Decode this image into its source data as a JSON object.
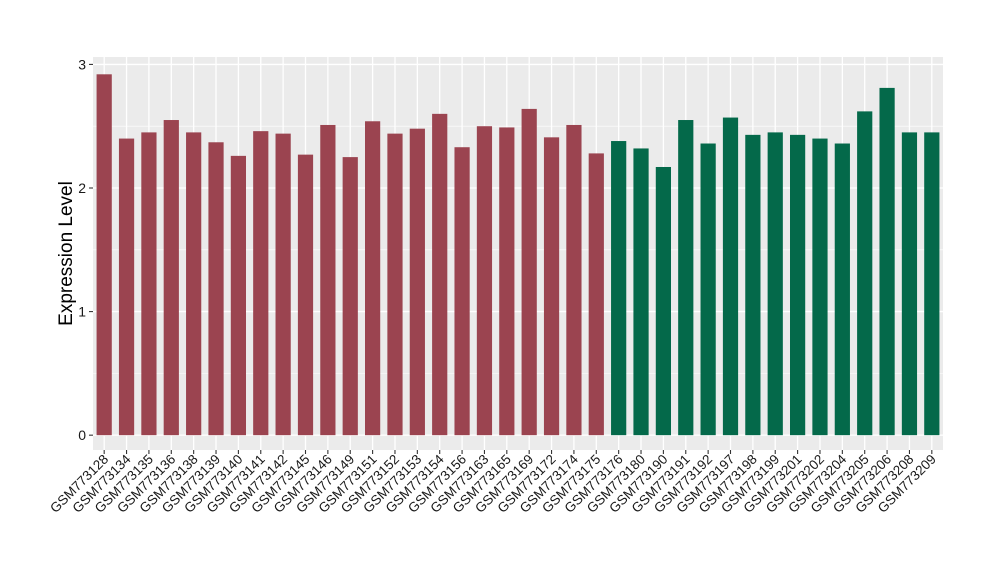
{
  "chart_data": {
    "type": "bar",
    "ylabel": "Expression Level",
    "xlabel": "",
    "ylim": [
      -0.12,
      3.06
    ],
    "yticks": [
      0,
      1,
      2,
      3
    ],
    "grid": true,
    "legend": "none",
    "colors": {
      "group1": "#9b4450",
      "group2": "#04694a",
      "panel": "#ebebeb",
      "grid": "#ffffff"
    },
    "categories": [
      "GSM773128",
      "GSM773134",
      "GSM773135",
      "GSM773136",
      "GSM773138",
      "GSM773139",
      "GSM773140",
      "GSM773141",
      "GSM773142",
      "GSM773145",
      "GSM773146",
      "GSM773149",
      "GSM773151",
      "GSM773152",
      "GSM773153",
      "GSM773154",
      "GSM773156",
      "GSM773163",
      "GSM773165",
      "GSM773169",
      "GSM773172",
      "GSM773174",
      "GSM773175",
      "GSM773176",
      "GSM773180",
      "GSM773190",
      "GSM773191",
      "GSM773192",
      "GSM773197",
      "GSM773198",
      "GSM773199",
      "GSM773201",
      "GSM773202",
      "GSM773204",
      "GSM773205",
      "GSM773206",
      "GSM773208",
      "GSM773209"
    ],
    "values": [
      2.92,
      2.4,
      2.45,
      2.55,
      2.45,
      2.37,
      2.26,
      2.46,
      2.44,
      2.27,
      2.51,
      2.25,
      2.54,
      2.44,
      2.48,
      2.6,
      2.33,
      2.5,
      2.49,
      2.64,
      2.41,
      2.51,
      2.28,
      2.38,
      2.32,
      2.17,
      2.55,
      2.36,
      2.57,
      2.43,
      2.45,
      2.43,
      2.4,
      2.36,
      2.62,
      2.81,
      2.45,
      2.45
    ],
    "groups": [
      "group1",
      "group1",
      "group1",
      "group1",
      "group1",
      "group1",
      "group1",
      "group1",
      "group1",
      "group1",
      "group1",
      "group1",
      "group1",
      "group1",
      "group1",
      "group1",
      "group1",
      "group1",
      "group1",
      "group1",
      "group1",
      "group1",
      "group1",
      "group2",
      "group2",
      "group2",
      "group2",
      "group2",
      "group2",
      "group2",
      "group2",
      "group2",
      "group2",
      "group2",
      "group2",
      "group2",
      "group2",
      "group2"
    ]
  }
}
